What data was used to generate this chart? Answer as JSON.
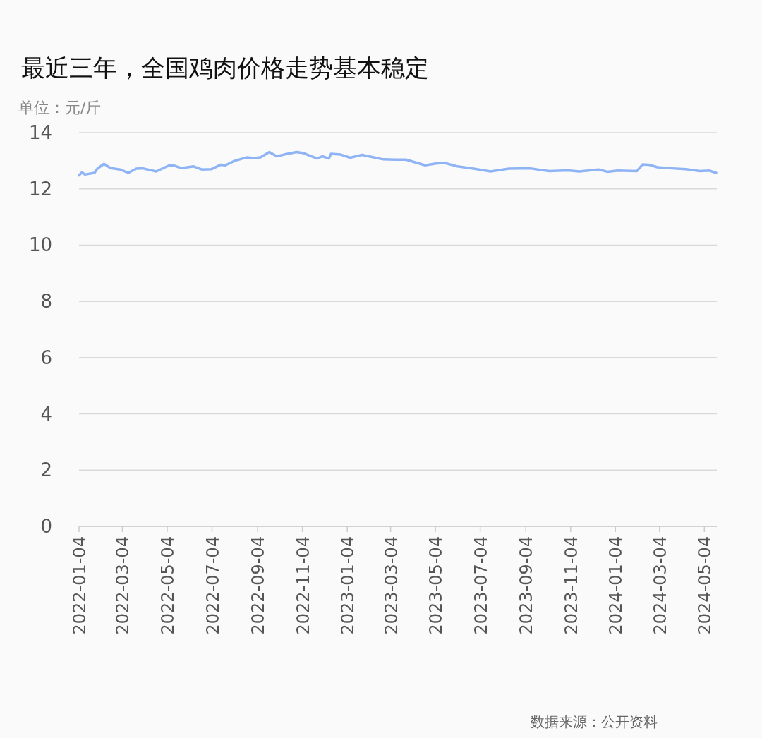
{
  "chart_data": {
    "type": "line",
    "title": "最近三年，全国鸡肉价格走势基本稳定",
    "ylabel": "单位：元/斤",
    "x": [
      "2022-01-04",
      "2022-01-08",
      "2022-01-12",
      "2022-01-25",
      "2022-01-29",
      "2022-02-07",
      "2022-02-16",
      "2022-03-01",
      "2022-03-12",
      "2022-03-23",
      "2022-04-01",
      "2022-04-19",
      "2022-05-07",
      "2022-05-13",
      "2022-05-23",
      "2022-06-09",
      "2022-06-20",
      "2022-07-03",
      "2022-07-16",
      "2022-07-22",
      "2022-08-04",
      "2022-08-20",
      "2022-08-30",
      "2022-09-08",
      "2022-09-20",
      "2022-09-30",
      "2022-10-10",
      "2022-10-27",
      "2022-11-06",
      "2022-11-11",
      "2022-11-24",
      "2022-12-01",
      "2022-12-10",
      "2022-12-13",
      "2022-12-26",
      "2023-01-08",
      "2023-01-24",
      "2023-02-09",
      "2023-02-22",
      "2023-03-10",
      "2023-03-25",
      "2023-04-20",
      "2023-05-06",
      "2023-05-17",
      "2023-06-03",
      "2023-06-25",
      "2023-07-18",
      "2023-08-12",
      "2023-09-10",
      "2023-10-06",
      "2023-10-31",
      "2023-11-16",
      "2023-12-12",
      "2023-12-24",
      "2024-01-07",
      "2024-02-02",
      "2024-02-10",
      "2024-02-18",
      "2024-03-01",
      "2024-03-21",
      "2024-04-09",
      "2024-04-28",
      "2024-05-11",
      "2024-05-20"
    ],
    "series": [
      {
        "color": "#8fb4f5",
        "values": [
          12.48,
          12.59,
          12.51,
          12.57,
          12.72,
          12.89,
          12.74,
          12.69,
          12.57,
          12.72,
          12.73,
          12.62,
          12.84,
          12.83,
          12.74,
          12.8,
          12.69,
          12.7,
          12.86,
          12.84,
          13.0,
          13.12,
          13.1,
          13.12,
          13.31,
          13.16,
          13.22,
          13.31,
          13.27,
          13.21,
          13.08,
          13.16,
          13.08,
          13.25,
          13.22,
          13.11,
          13.21,
          13.12,
          13.05,
          13.04,
          13.04,
          12.84,
          12.91,
          12.92,
          12.8,
          12.72,
          12.62,
          12.72,
          12.73,
          12.63,
          12.66,
          12.62,
          12.69,
          12.61,
          12.65,
          12.63,
          12.87,
          12.86,
          12.77,
          12.73,
          12.7,
          12.63,
          12.65,
          12.57
        ]
      }
    ],
    "xlim": [
      "2022-01-04",
      "2024-05-21"
    ],
    "xticks": [
      "2022-01-04",
      "2022-03-04",
      "2022-05-04",
      "2022-07-04",
      "2022-09-04",
      "2022-11-04",
      "2023-01-04",
      "2023-03-04",
      "2023-05-04",
      "2023-07-04",
      "2023-09-04",
      "2023-11-04",
      "2024-01-04",
      "2024-03-04",
      "2024-05-04"
    ],
    "ylim": [
      0,
      14
    ],
    "yticks": [
      0,
      2,
      4,
      6,
      8,
      10,
      12,
      14
    ],
    "grid": "y",
    "line_style": "solid",
    "marker": "none",
    "annotations": [
      "数据来源：公开资料"
    ]
  }
}
